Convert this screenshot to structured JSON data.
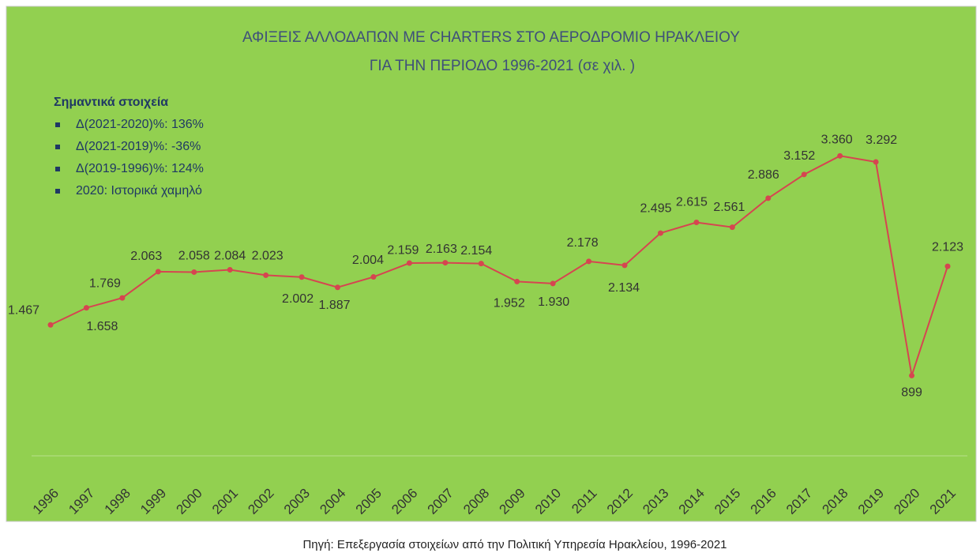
{
  "chart_data": {
    "type": "line",
    "title": [
      "ΑΦΙΞΕΙΣ ΑΛΛΟΔΑΠΩΝ ΜΕ CHARTERS ΣΤΟ ΑΕΡΟΔΡΟΜΙΟ ΗΡΑΚΛΕΙΟΥ",
      "ΓΙΑ ΤΗΝ ΠΕΡΙΟΔΟ 1996-2021 (σε χιλ. )"
    ],
    "notes": {
      "heading": "Σημαντικά στοιχεία",
      "items": [
        "Δ(2021-2020)%: 136%",
        "Δ(2021-2019)%: -36%",
        "Δ(2019-1996)%: 124%",
        "2020: Ιστορικά χαμηλό"
      ]
    },
    "categories": [
      "1996",
      "1997",
      "1998",
      "1999",
      "2000",
      "2001",
      "2002",
      "2003",
      "2004",
      "2005",
      "2006",
      "2007",
      "2008",
      "2009",
      "2010",
      "2011",
      "2012",
      "2013",
      "2014",
      "2015",
      "2016",
      "2017",
      "2018",
      "2019",
      "2020",
      "2021"
    ],
    "values": [
      1467,
      1658,
      1769,
      2063,
      2058,
      2084,
      2023,
      2002,
      1887,
      2004,
      2159,
      2163,
      2154,
      1952,
      1930,
      2178,
      2134,
      2495,
      2615,
      2561,
      2886,
      3152,
      3360,
      3292,
      899,
      2123
    ],
    "value_labels": [
      "1.467",
      "1.658",
      "1.769",
      "2.063",
      "2.058",
      "2.084",
      "2.023",
      "2.002",
      "1.887",
      "2.004",
      "2.159",
      "2.163",
      "2.154",
      "1.952",
      "1.930",
      "2.178",
      "2.134",
      "2.495",
      "2.615",
      "2.561",
      "2.886",
      "3.152",
      "3.360",
      "3.292",
      "899",
      "2.123"
    ],
    "color": "#d64550",
    "ylim": [
      0,
      4000
    ],
    "source": "Πηγή: Επεξεργασία στοιχείων από την Πολιτική Υπηρεσία Ηρακλείου, 1996-2021"
  }
}
